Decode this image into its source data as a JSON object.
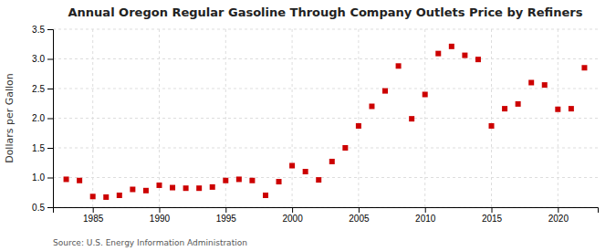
{
  "chart_data": {
    "type": "scatter",
    "title": "Annual Oregon Regular Gasoline Through Company Outlets Price by Refiners",
    "y_label": "Dollars per Gallon",
    "source": "Source: U.S. Energy Information Administration",
    "x": [
      1983,
      1984,
      1985,
      1986,
      1987,
      1988,
      1989,
      1990,
      1991,
      1992,
      1993,
      1994,
      1995,
      1996,
      1997,
      1998,
      1999,
      2000,
      2001,
      2002,
      2003,
      2004,
      2005,
      2006,
      2007,
      2008,
      2009,
      2010,
      2011,
      2012,
      2013,
      2014,
      2015,
      2016,
      2017,
      2018,
      2019,
      2020,
      2021,
      2022
    ],
    "values": [
      0.97,
      0.95,
      0.68,
      0.67,
      0.7,
      0.8,
      0.78,
      0.87,
      0.83,
      0.82,
      0.82,
      0.84,
      0.95,
      0.97,
      0.95,
      0.7,
      0.93,
      1.2,
      1.1,
      0.96,
      1.27,
      1.5,
      1.87,
      2.2,
      2.46,
      2.88,
      1.99,
      2.4,
      3.09,
      3.21,
      3.06,
      2.99,
      1.87,
      2.16,
      2.24,
      2.6,
      2.56,
      2.15,
      2.16,
      2.85
    ],
    "color": "#cc0000",
    "marker": "square",
    "xlim": [
      1982,
      2023
    ],
    "ylim": [
      0.5,
      3.5
    ],
    "xticks": [
      1985,
      1990,
      1995,
      2000,
      2005,
      2010,
      2015,
      2020
    ],
    "yticks": [
      0.5,
      {
        "value": 1.0,
        "label": "1.0"
      },
      1.5,
      {
        "value": 2.0,
        "label": "2.0"
      },
      2.5,
      {
        "value": 3.0,
        "label": "3.0"
      },
      3.5
    ],
    "grid": true
  }
}
